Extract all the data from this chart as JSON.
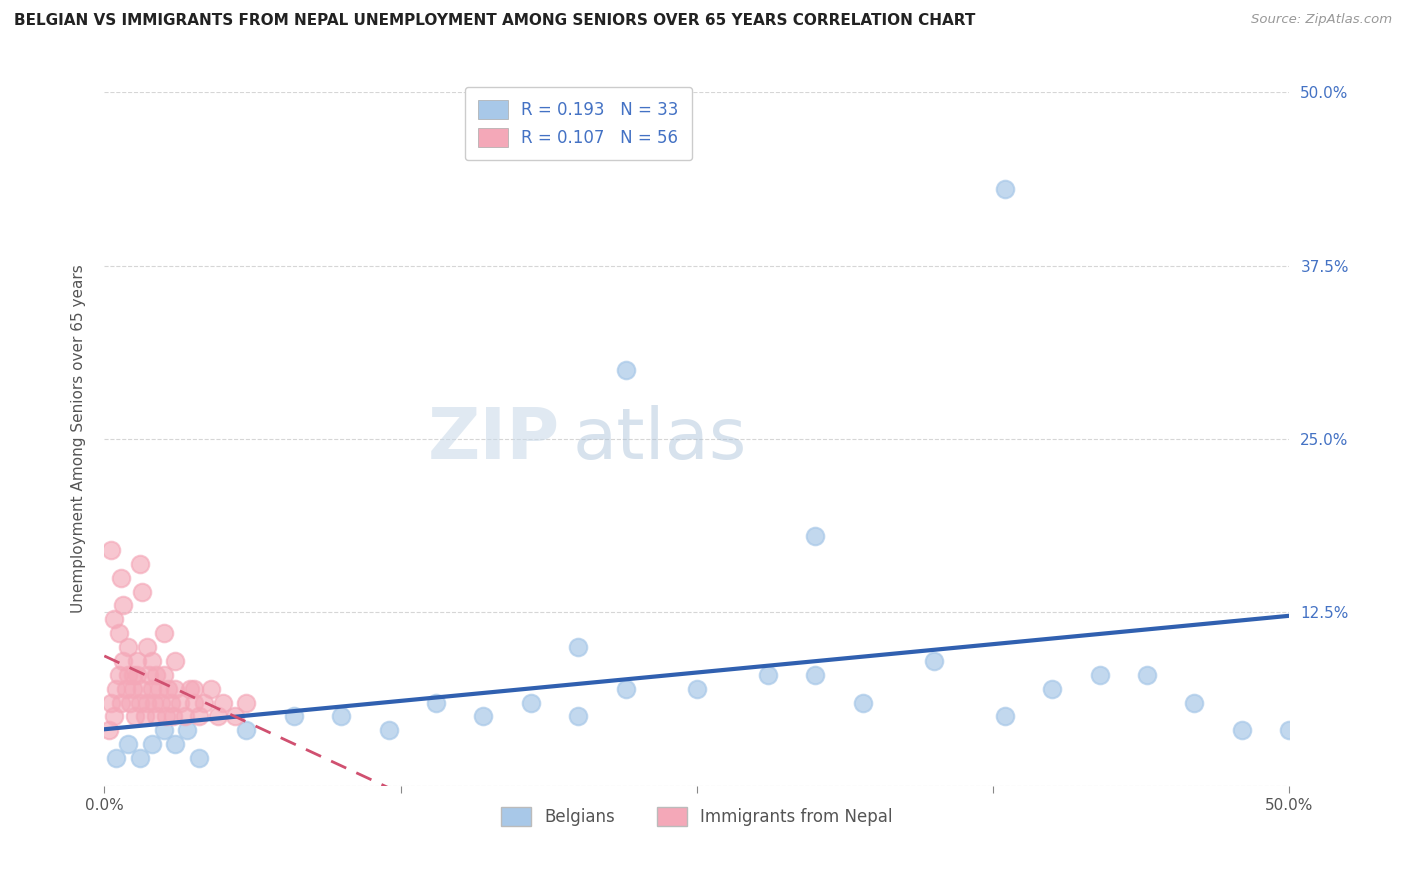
{
  "title": "BELGIAN VS IMMIGRANTS FROM NEPAL UNEMPLOYMENT AMONG SENIORS OVER 65 YEARS CORRELATION CHART",
  "source": "Source: ZipAtlas.com",
  "ylabel": "Unemployment Among Seniors over 65 years",
  "xmin": 0.0,
  "xmax": 0.5,
  "ymin": 0.0,
  "ymax": 0.5,
  "legend_labels": [
    "Belgians",
    "Immigrants from Nepal"
  ],
  "belgians_R": 0.193,
  "belgians_N": 33,
  "nepal_R": 0.107,
  "nepal_N": 56,
  "color_belgians": "#a8c8e8",
  "color_nepal": "#f4a8b8",
  "color_trendline_belgians": "#3060b0",
  "color_trendline_nepal": "#d05070",
  "title_color": "#222222",
  "source_color": "#999999",
  "legend_text_color": "#4472c4",
  "background_color": "#ffffff",
  "belgians_x": [
    0.005,
    0.01,
    0.015,
    0.02,
    0.025,
    0.03,
    0.035,
    0.04,
    0.06,
    0.08,
    0.1,
    0.12,
    0.14,
    0.16,
    0.18,
    0.2,
    0.22,
    0.25,
    0.28,
    0.3,
    0.32,
    0.35,
    0.38,
    0.4,
    0.42,
    0.44,
    0.46,
    0.48,
    0.5,
    0.22,
    0.38,
    0.2,
    0.3
  ],
  "belgians_y": [
    0.02,
    0.03,
    0.02,
    0.03,
    0.04,
    0.03,
    0.04,
    0.02,
    0.04,
    0.05,
    0.05,
    0.04,
    0.06,
    0.05,
    0.06,
    0.05,
    0.07,
    0.07,
    0.08,
    0.08,
    0.06,
    0.09,
    0.05,
    0.07,
    0.08,
    0.08,
    0.06,
    0.04,
    0.04,
    0.3,
    0.43,
    0.1,
    0.18
  ],
  "nepal_x": [
    0.002,
    0.003,
    0.004,
    0.005,
    0.006,
    0.007,
    0.008,
    0.009,
    0.01,
    0.011,
    0.012,
    0.013,
    0.014,
    0.015,
    0.016,
    0.017,
    0.018,
    0.019,
    0.02,
    0.021,
    0.022,
    0.023,
    0.024,
    0.025,
    0.026,
    0.027,
    0.028,
    0.029,
    0.03,
    0.032,
    0.034,
    0.036,
    0.038,
    0.04,
    0.042,
    0.045,
    0.048,
    0.05,
    0.055,
    0.06,
    0.004,
    0.006,
    0.01,
    0.014,
    0.018,
    0.008,
    0.012,
    0.02,
    0.025,
    0.016,
    0.022,
    0.03,
    0.038,
    0.003,
    0.007,
    0.015
  ],
  "nepal_y": [
    0.04,
    0.06,
    0.05,
    0.07,
    0.08,
    0.06,
    0.09,
    0.07,
    0.08,
    0.06,
    0.07,
    0.05,
    0.08,
    0.06,
    0.07,
    0.05,
    0.06,
    0.08,
    0.07,
    0.06,
    0.05,
    0.07,
    0.06,
    0.08,
    0.05,
    0.07,
    0.06,
    0.05,
    0.07,
    0.06,
    0.05,
    0.07,
    0.06,
    0.05,
    0.06,
    0.07,
    0.05,
    0.06,
    0.05,
    0.06,
    0.12,
    0.11,
    0.1,
    0.09,
    0.1,
    0.13,
    0.08,
    0.09,
    0.11,
    0.14,
    0.08,
    0.09,
    0.07,
    0.17,
    0.15,
    0.16
  ]
}
